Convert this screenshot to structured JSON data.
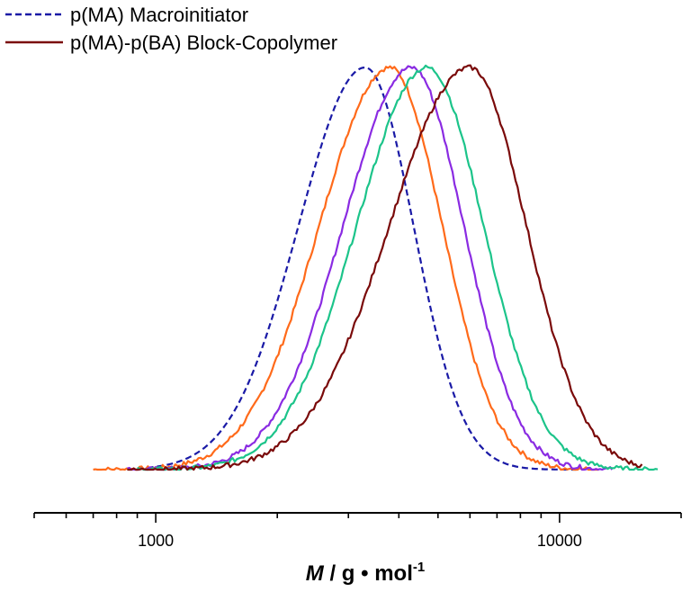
{
  "chart_data": {
    "type": "line",
    "title": "",
    "x_axis": {
      "scale": "log",
      "range": [
        500,
        20000
      ],
      "major_ticks": [
        1000,
        10000
      ],
      "tick_labels": [
        "1000",
        "10000"
      ],
      "label": {
        "symbol": "M",
        "separator": " / g",
        "bullet": " • ",
        "unit": "mol",
        "exponent": "-1"
      }
    },
    "y_axis": {
      "visible": false,
      "range": [
        0,
        1
      ]
    },
    "grid": false,
    "legend": {
      "position": "top-left",
      "entries": [
        {
          "label": "p(MA) Macroinitiator",
          "color": "#1a1aa6",
          "dash": "dashed"
        },
        {
          "label": "p(MA)-p(BA) Block-Copolymer",
          "color": "#7a0a0a",
          "dash": "solid"
        }
      ]
    },
    "series": [
      {
        "name": "p(MA) Macroinitiator",
        "color": "#1a1aa6",
        "dash": "dashed",
        "peak_M": 3300,
        "width_left": 0.165,
        "width_right": 0.12,
        "x_range": [
          900,
          11000
        ],
        "noise": 0.0
      },
      {
        "color": "#ff6a1a",
        "dash": "solid",
        "peak_M": 3800,
        "width_left": 0.175,
        "width_right": 0.13,
        "x_range": [
          700,
          12500
        ],
        "noise": 0.006
      },
      {
        "color": "#8a2be2",
        "dash": "solid",
        "peak_M": 4300,
        "width_left": 0.17,
        "width_right": 0.13,
        "x_range": [
          850,
          13500
        ],
        "noise": 0.006
      },
      {
        "color": "#1cc48a",
        "dash": "solid",
        "peak_M": 4700,
        "width_left": 0.175,
        "width_right": 0.14,
        "x_range": [
          900,
          17500
        ],
        "noise": 0.006
      },
      {
        "name": "p(MA)-p(BA) Block-Copolymer",
        "color": "#7a0a0a",
        "dash": "solid",
        "peak_M": 6000,
        "width_left": 0.2,
        "width_right": 0.14,
        "x_range": [
          850,
          16000
        ],
        "noise": 0.006
      }
    ]
  }
}
